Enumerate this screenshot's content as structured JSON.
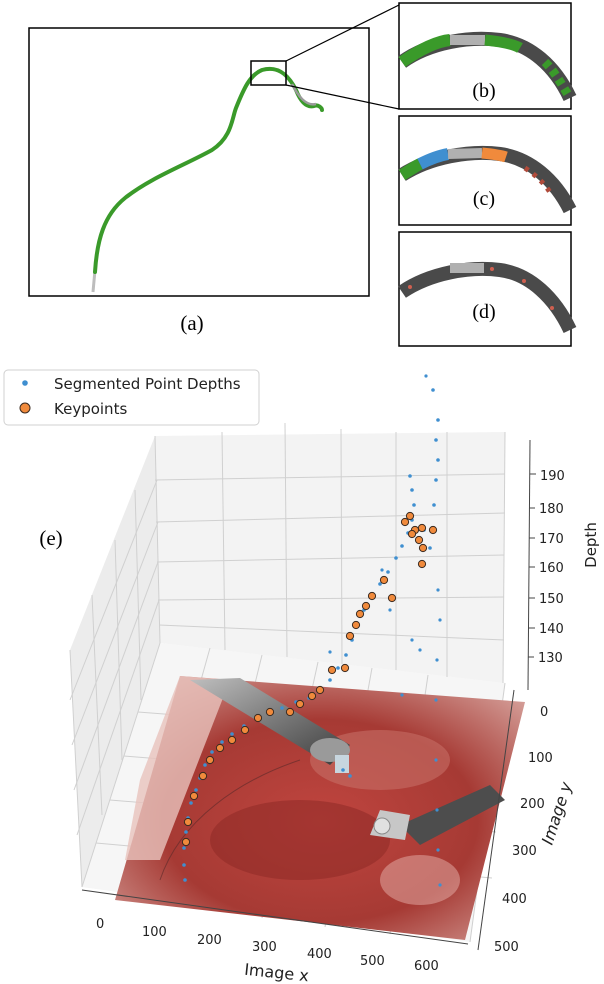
{
  "panels": {
    "a": "(a)",
    "b": "(b)",
    "c": "(c)",
    "d": "(d)",
    "e": "(e)"
  },
  "colors": {
    "thread_green": "#3a9a2a",
    "seg_blue": "#3f8fd0",
    "keypoint_orange": "#f08a3c",
    "thread_gray": "#8f8f8f",
    "panel_c_red": "#b04a3a"
  },
  "chart_data": {
    "type": "scatter",
    "legend": {
      "entries": [
        "Segmented Point Depths",
        "Keypoints"
      ],
      "placement": "top-left"
    },
    "xlabel": "Image x",
    "ylabel": "Image y",
    "zlabel": "Depth",
    "x_ticks": [
      "0",
      "100",
      "200",
      "300",
      "400",
      "500",
      "600"
    ],
    "y_ticks": [
      "0",
      "100",
      "200",
      "300",
      "400",
      "500"
    ],
    "z_ticks": [
      "130",
      "140",
      "150",
      "160",
      "170",
      "180",
      "190"
    ],
    "grid": true
  }
}
